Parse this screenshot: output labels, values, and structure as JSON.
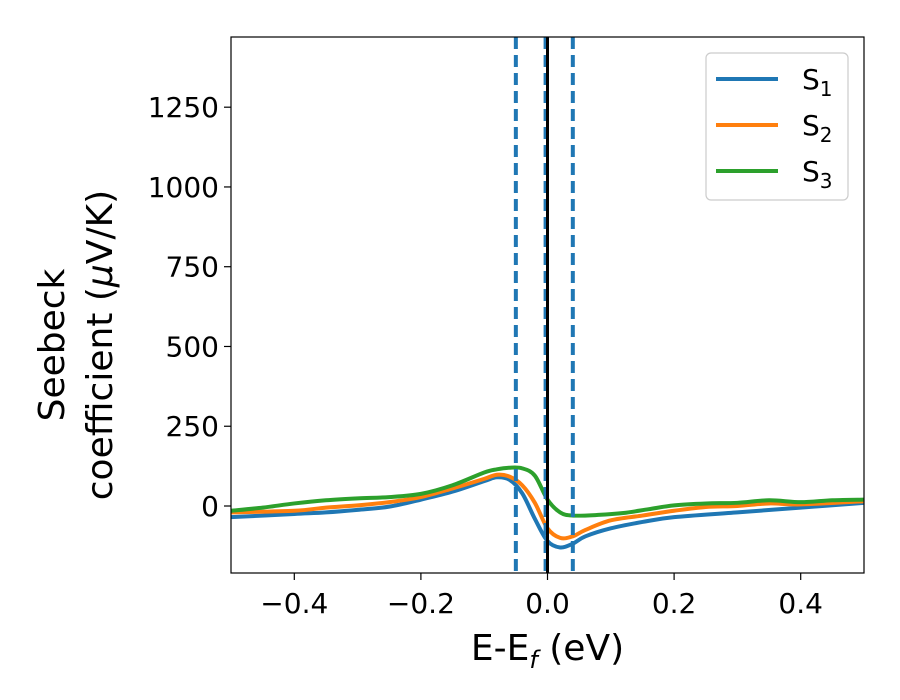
{
  "chart_data": {
    "type": "line",
    "title": "",
    "xlabel": {
      "main": "E-E",
      "sub": "f",
      "unit": " (eV)"
    },
    "ylabel": {
      "line1": "Seebeck",
      "line2_prefix": "coefficient  (",
      "mu": "μ",
      "line2_suffix": "V/K)"
    },
    "xlim": [
      -0.5,
      0.5
    ],
    "ylim": [
      -210,
      1470
    ],
    "xticks": [
      -0.4,
      -0.2,
      0.0,
      0.2,
      0.4
    ],
    "xtick_labels": [
      "−0.4",
      "−0.2",
      "0.0",
      "0.2",
      "0.4"
    ],
    "yticks": [
      0,
      250,
      500,
      750,
      1000,
      1250
    ],
    "ytick_labels": [
      "0",
      "250",
      "500",
      "750",
      "1000",
      "1250"
    ],
    "grid": false,
    "legend_position": "top-right",
    "vlines": [
      {
        "x": -0.05,
        "style": "dashed",
        "color": "#1f77b4"
      },
      {
        "x": -0.003,
        "style": "dashed",
        "color": "#1f77b4"
      },
      {
        "x": 0.04,
        "style": "dashed",
        "color": "#1f77b4"
      },
      {
        "x": 0.0,
        "style": "solid",
        "color": "#000000"
      }
    ],
    "series": [
      {
        "name": "S",
        "sub": "1",
        "color": "#1f77b4",
        "x": [
          -0.5,
          -0.4,
          -0.35,
          -0.3,
          -0.25,
          -0.2,
          -0.15,
          -0.1,
          -0.08,
          -0.06,
          -0.04,
          -0.02,
          0.0,
          0.02,
          0.04,
          0.06,
          0.1,
          0.15,
          0.2,
          0.3,
          0.4,
          0.5
        ],
        "y": [
          -35,
          -25,
          -20,
          -12,
          -2,
          20,
          45,
          78,
          90,
          82,
          40,
          -40,
          -110,
          -130,
          -118,
          -95,
          -70,
          -50,
          -35,
          -20,
          -5,
          10
        ]
      },
      {
        "name": "S",
        "sub": "2",
        "color": "#ff7f0e",
        "x": [
          -0.5,
          -0.4,
          -0.35,
          -0.3,
          -0.25,
          -0.2,
          -0.15,
          -0.1,
          -0.08,
          -0.06,
          -0.04,
          -0.02,
          0.0,
          0.02,
          0.04,
          0.06,
          0.1,
          0.15,
          0.2,
          0.25,
          0.3,
          0.35,
          0.4,
          0.5
        ],
        "y": [
          -20,
          -15,
          -5,
          2,
          12,
          28,
          55,
          85,
          98,
          92,
          65,
          10,
          -70,
          -100,
          -95,
          -75,
          -45,
          -30,
          -15,
          -3,
          0,
          8,
          5,
          15
        ]
      },
      {
        "name": "S",
        "sub": "3",
        "color": "#2ca02c",
        "x": [
          -0.5,
          -0.45,
          -0.4,
          -0.35,
          -0.3,
          -0.25,
          -0.2,
          -0.15,
          -0.1,
          -0.08,
          -0.06,
          -0.04,
          -0.02,
          0.0,
          0.02,
          0.04,
          0.08,
          0.12,
          0.16,
          0.2,
          0.25,
          0.3,
          0.35,
          0.4,
          0.45,
          0.5
        ],
        "y": [
          -15,
          -5,
          8,
          18,
          24,
          28,
          38,
          65,
          105,
          115,
          120,
          118,
          95,
          20,
          -20,
          -30,
          -28,
          -22,
          -10,
          2,
          8,
          10,
          18,
          12,
          18,
          20
        ]
      }
    ]
  }
}
